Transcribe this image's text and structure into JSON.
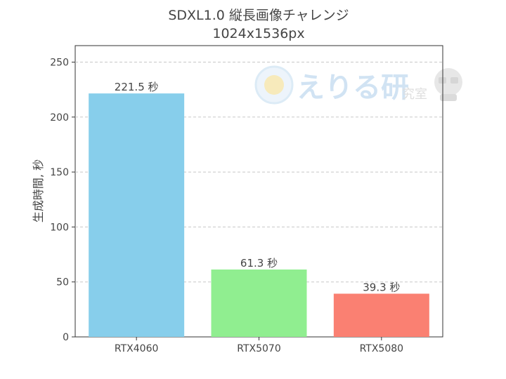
{
  "chart_data": {
    "type": "bar",
    "title": "SDXL1.0 縦長画像チャレンジ",
    "subtitle": "1024x1536px",
    "xlabel": "",
    "ylabel": "生成時間, 秒",
    "categories": [
      "RTX4060",
      "RTX5070",
      "RTX5080"
    ],
    "values": [
      221.5,
      61.3,
      39.3
    ],
    "data_labels": [
      "221.5 秒",
      "61.3 秒",
      "39.3 秒"
    ],
    "colors": [
      "#87ceeb",
      "#90ee90",
      "#fa8072"
    ],
    "ylim": [
      0,
      265
    ],
    "yticks": [
      0,
      50,
      100,
      150,
      200,
      250
    ],
    "grid": "horizontal-dashed",
    "legend": "none"
  },
  "watermark": {
    "text": "えりる研",
    "small_text": "究室"
  }
}
